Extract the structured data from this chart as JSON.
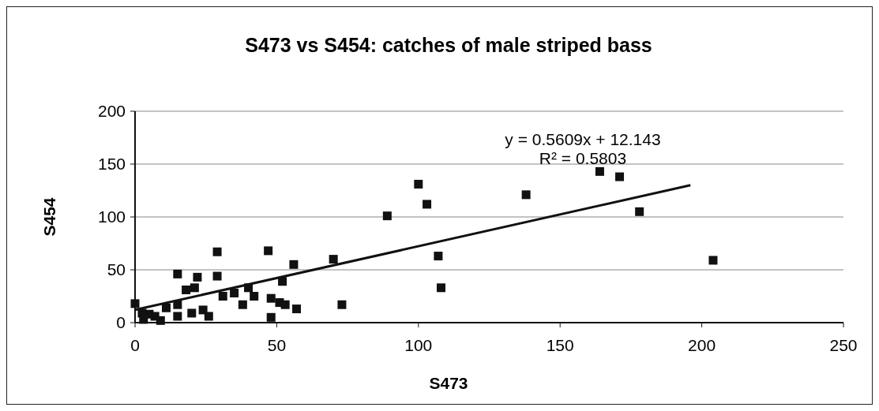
{
  "chart_data": {
    "type": "scatter",
    "title": "S473 vs S454: catches of male striped bass",
    "xlabel": "S473",
    "ylabel": "S454",
    "xlim": [
      0,
      250
    ],
    "xticks": [
      0,
      50,
      100,
      150,
      200,
      250
    ],
    "ylim": [
      0,
      200
    ],
    "yticks": [
      0,
      50,
      100,
      150,
      200
    ],
    "grid": "y",
    "marker": "square",
    "annotations": [
      "y = 0.5609x + 12.143",
      "R² = 0.5803"
    ],
    "series": [
      {
        "color": "#111111",
        "x": [
          0,
          2.5,
          3,
          5,
          7,
          9,
          11,
          15,
          15,
          15,
          18,
          20,
          21,
          22,
          24,
          26,
          29,
          29,
          31,
          35,
          38,
          40,
          42,
          47,
          48,
          48,
          51,
          52,
          53,
          56,
          57,
          70,
          73,
          89,
          100,
          103,
          107,
          108,
          138,
          164,
          171,
          178,
          204
        ],
        "values": [
          18,
          9,
          3,
          8,
          6,
          2,
          14,
          46,
          6,
          17,
          31,
          9,
          33,
          43,
          12,
          6,
          44,
          67,
          25,
          28,
          17,
          33,
          25,
          68,
          5,
          23,
          19,
          39,
          17,
          55,
          13,
          60,
          17,
          101,
          131,
          112,
          63,
          33,
          121,
          143,
          138,
          105,
          59
        ]
      },
      {
        "type": "line",
        "color": "#111111",
        "marker": "none",
        "x": [
          0,
          196
        ],
        "values": [
          12.1,
          130
        ]
      }
    ]
  }
}
